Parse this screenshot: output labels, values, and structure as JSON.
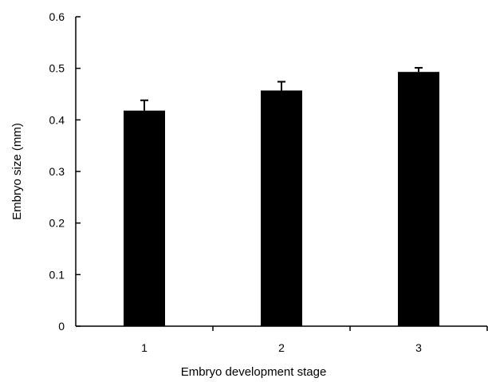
{
  "chart_data": {
    "type": "bar",
    "categories": [
      "1",
      "2",
      "3"
    ],
    "values": [
      0.418,
      0.457,
      0.493
    ],
    "errors": [
      0.02,
      0.017,
      0.008
    ],
    "xlabel": "Embryo development stage",
    "ylabel": "Embryo size (mm)",
    "ylim": [
      0,
      0.6
    ],
    "yticks": [
      "0",
      "0.1",
      "0.2",
      "0.3",
      "0.4",
      "0.5",
      "0.6"
    ],
    "grid": false,
    "bar_color": "#000000"
  }
}
